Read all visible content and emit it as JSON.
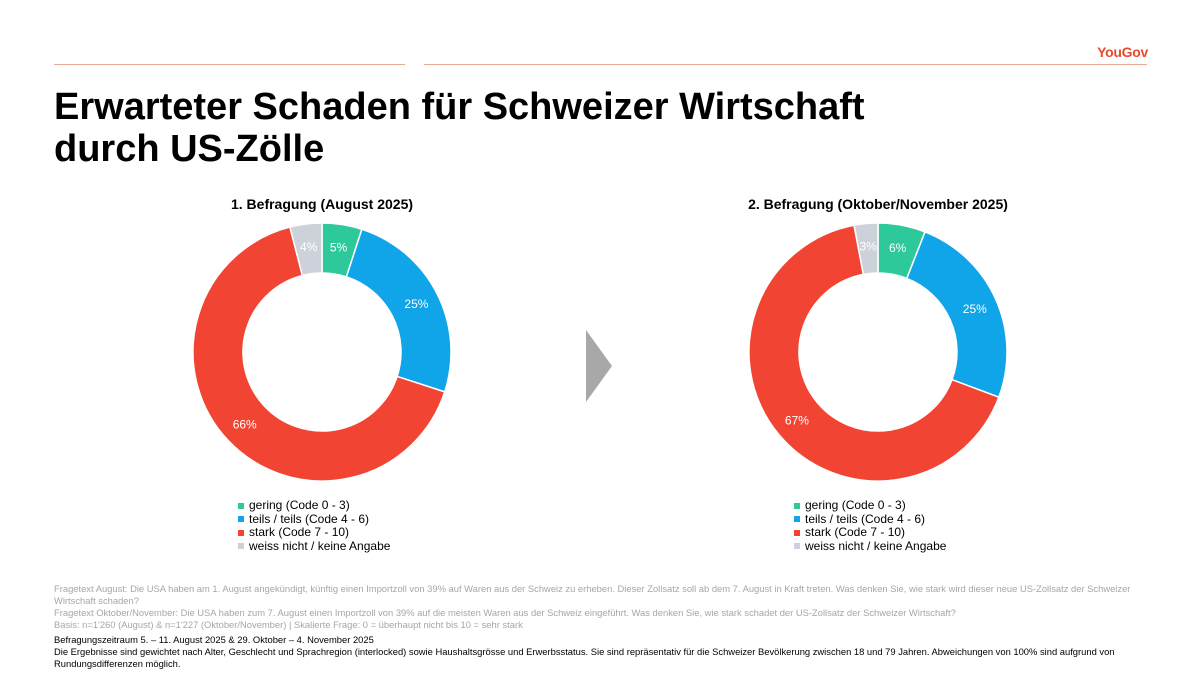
{
  "brand": {
    "logo": "YouGov"
  },
  "title": {
    "line1": "Erwarteter Schaden für Schweizer Wirtschaft",
    "line2": "durch US-Zölle"
  },
  "colors": {
    "gering": "#2ec99a",
    "teils": "#10a4e8",
    "stark": "#f24433",
    "weiss_nicht": "#cdd1d9",
    "arrow": "#a8a8a8",
    "accent": "#e84a2d"
  },
  "legend": {
    "items": [
      {
        "label": "gering (Code 0 - 3)",
        "color": "#2ec99a"
      },
      {
        "label": "teils / teils (Code 4 - 6)",
        "color": "#10a4e8"
      },
      {
        "label": "stark (Code 7 - 10)",
        "color": "#f24433"
      },
      {
        "label": "weiss nicht / keine Angabe",
        "color": "#cdd1d9"
      }
    ]
  },
  "chart_data": [
    {
      "type": "pie",
      "title": "1. Befragung (August 2025)",
      "categories": [
        "gering (Code 0 - 3)",
        "teils / teils (Code 4 - 6)",
        "stark (Code 7 - 10)",
        "weiss nicht / keine Angabe"
      ],
      "values": [
        5,
        25,
        66,
        4
      ],
      "labels": [
        "5%",
        "25%",
        "66%",
        "4%"
      ],
      "donut": true
    },
    {
      "type": "pie",
      "title": "2. Befragung (Oktober/November 2025)",
      "categories": [
        "gering (Code 0 - 3)",
        "teils / teils (Code 4 - 6)",
        "stark (Code 7 - 10)",
        "weiss nicht / keine Angabe"
      ],
      "values": [
        6,
        25,
        67,
        3
      ],
      "labels": [
        "6%",
        "25%",
        "67%",
        "3%"
      ],
      "donut": true
    }
  ],
  "notes": {
    "line1": "Fragetext August: Die USA haben am 1. August angekündigt, künftig einen Importzoll von 39% auf Waren aus der Schweiz zu erheben. Dieser Zollsatz soll ab dem 7. August in Kraft treten. Was denken Sie, wie stark wird dieser neue US-Zollsatz der Schweizer Wirtschaft schaden?",
    "line2": "Fragetext Oktober/November: Die USA haben zum 7. August einen Importzoll von 39% auf die meisten Waren aus der Schweiz eingeführt. Was denken Sie, wie stark schadet der US-Zollsatz der Schweizer Wirtschaft?",
    "line3": "Basis: n=1'260 (August) & n=1'227 (Oktober/November) | Skalierte Frage: 0 = überhaupt nicht bis 10 = sehr stark"
  },
  "footer": {
    "line1": "Befragungszeitraum 5. – 11. August 2025 & 29. Oktober – 4. November 2025",
    "line2": "Die Ergebnisse sind gewichtet nach Alter, Geschlecht und Sprachregion (interlocked) sowie Haushaltsgrösse und Erwerbsstatus. Sie sind repräsentativ für die Schweizer Bevölkerung zwischen 18 und 79 Jahren. Abweichungen von 100% sind aufgrund von Rundungsdifferenzen möglich."
  }
}
